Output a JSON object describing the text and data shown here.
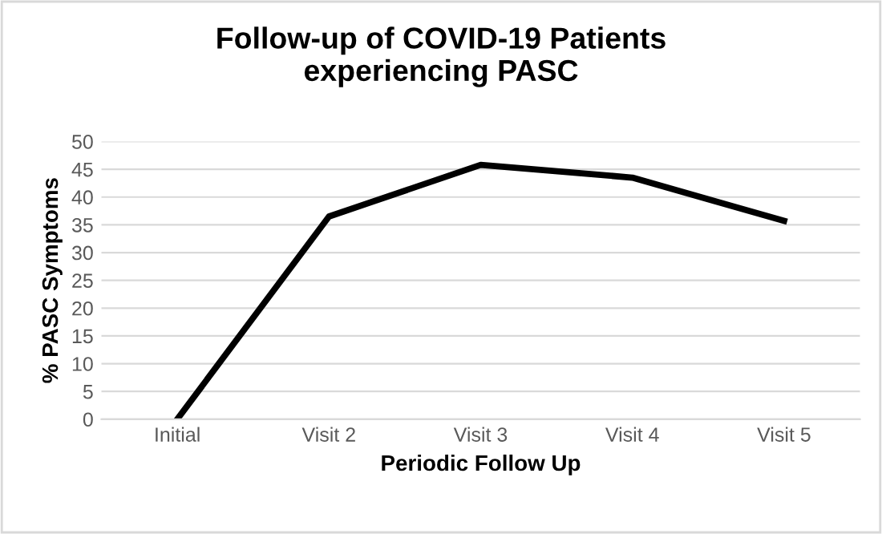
{
  "chart_data": {
    "type": "line",
    "title": "Follow-up of COVID-19 Patients\nexperiencing PASC",
    "xlabel": "Periodic Follow Up",
    "ylabel": "% PASC Symptoms",
    "categories": [
      "Initial",
      "Visit 2",
      "Visit 3",
      "Visit 4",
      "Visit 5"
    ],
    "series": [
      {
        "color": "#000000",
        "values": [
          0,
          36.5,
          45.8,
          43.5,
          35.7
        ]
      }
    ],
    "ylim": [
      0,
      50
    ],
    "yticks": [
      0,
      5,
      10,
      15,
      20,
      25,
      30,
      35,
      40,
      45,
      50
    ],
    "grid": "y",
    "legend": false,
    "marker": "none",
    "line_style": "solid"
  }
}
